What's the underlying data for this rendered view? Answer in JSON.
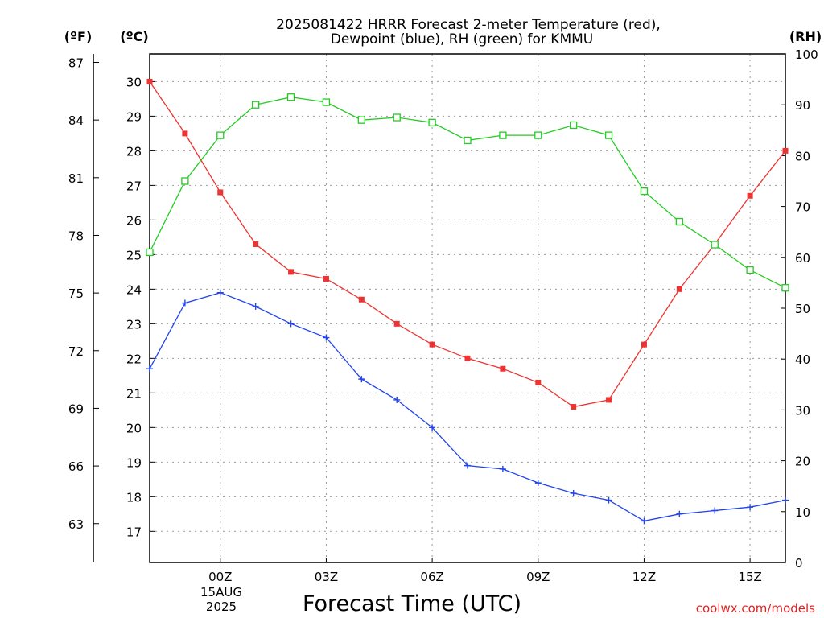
{
  "chart_data": {
    "type": "line",
    "title_line1": "2025081422 HRRR Forecast 2-meter Temperature (red),",
    "title_line2": "Dewpoint (blue), RH (green) for KMMU",
    "xlabel": "Forecast Time (UTC)",
    "date_label": [
      "15AUG",
      "2025"
    ],
    "units": {
      "left_outer": "(ºF)",
      "left_inner": "(ºC)",
      "right": "(RH)"
    },
    "credit": "coolwx.com/models",
    "colors": {
      "temperature": "#ee3333",
      "dewpoint": "#2244ee",
      "rh": "#22cc22",
      "credit": "#dd2222"
    },
    "x_hours": [
      -2,
      -1,
      0,
      1,
      2,
      3,
      4,
      5,
      6,
      7,
      8,
      9,
      10,
      11,
      12,
      13,
      14,
      15,
      16
    ],
    "x_ticks": [
      {
        "hour": 0,
        "label": "00Z"
      },
      {
        "hour": 3,
        "label": "03Z"
      },
      {
        "hour": 6,
        "label": "06Z"
      },
      {
        "hour": 9,
        "label": "09Z"
      },
      {
        "hour": 12,
        "label": "12Z"
      },
      {
        "hour": 15,
        "label": "15Z"
      }
    ],
    "x_range": [
      -2,
      16
    ],
    "celsius_axis": {
      "range": [
        16.1,
        30.8
      ],
      "ticks": [
        17,
        18,
        19,
        20,
        21,
        22,
        23,
        24,
        25,
        26,
        27,
        28,
        29,
        30
      ]
    },
    "fahrenheit_axis": {
      "ticks": [
        63,
        66,
        69,
        72,
        75,
        78,
        81,
        84,
        87
      ]
    },
    "rh_axis": {
      "range": [
        0,
        100
      ],
      "ticks": [
        0,
        10,
        20,
        30,
        40,
        50,
        60,
        70,
        80,
        90,
        100
      ]
    },
    "grid": true,
    "series": [
      {
        "key": "temperature",
        "axis": "celsius",
        "marker": "filled-square",
        "values": [
          30.0,
          28.5,
          26.8,
          25.3,
          24.5,
          24.3,
          23.7,
          23.0,
          22.4,
          22.0,
          21.7,
          21.3,
          20.6,
          20.8,
          22.4,
          24.0,
          25.3,
          26.7,
          28.0
        ]
      },
      {
        "key": "dewpoint",
        "axis": "celsius",
        "marker": "plus",
        "values": [
          21.7,
          23.6,
          23.9,
          23.5,
          23.0,
          22.6,
          21.4,
          20.8,
          20.0,
          18.9,
          18.8,
          18.4,
          18.1,
          17.9,
          17.3,
          17.5,
          17.6,
          17.7,
          17.9
        ]
      },
      {
        "key": "rh",
        "axis": "rh",
        "marker": "open-square",
        "values": [
          61,
          75,
          84,
          90,
          91.5,
          90.5,
          87,
          87.5,
          86.5,
          83,
          84,
          84,
          86,
          84,
          73,
          67,
          62.5,
          57.5,
          54
        ]
      }
    ]
  }
}
